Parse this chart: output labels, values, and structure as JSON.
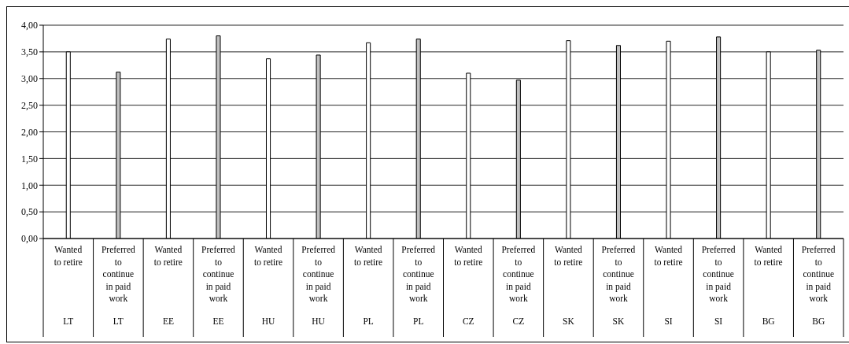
{
  "chart_data": {
    "type": "bar",
    "categories": [
      "Wanted to retire\nLT",
      "Preferred to continue in paid work\nLT",
      "Wanted to retire\nEE",
      "Preferred to continue in paid work\nEE",
      "Wanted to retire\nHU",
      "Preferred to continue in paid work\nHU",
      "Wanted to retire\nPL",
      "Preferred to continue in paid work\nPL",
      "Wanted to retire\nCZ",
      "Preferred to continue in paid work\nCZ",
      "Wanted to retire\nSK",
      "Preferred to continue in paid work\nSK",
      "Wanted to retire\nSI",
      "Preferred to continue in paid work\nSI",
      "Wanted to retire\nBG",
      "Preferred to continue in paid work\nBG"
    ],
    "values": [
      3.5,
      3.12,
      3.74,
      3.8,
      3.37,
      3.44,
      3.67,
      3.74,
      3.1,
      2.97,
      3.71,
      3.62,
      3.7,
      3.78,
      3.5,
      3.53
    ],
    "colors": [
      "#ffffff",
      "#c0c0c0",
      "#ffffff",
      "#c0c0c0",
      "#ffffff",
      "#c0c0c0",
      "#ffffff",
      "#c0c0c0",
      "#ffffff",
      "#c0c0c0",
      "#ffffff",
      "#c0c0c0",
      "#ffffff",
      "#c0c0c0",
      "#ffffff",
      "#c0c0c0"
    ],
    "ylim": [
      0,
      4
    ],
    "yticks": [
      {
        "value": 0,
        "label": "0,00"
      },
      {
        "value": 0.5,
        "label": "0,50"
      },
      {
        "value": 1,
        "label": "1,00"
      },
      {
        "value": 1.5,
        "label": "1,50"
      },
      {
        "value": 2,
        "label": "2,00"
      },
      {
        "value": 2.5,
        "label": "2,50"
      },
      {
        "value": 3,
        "label": "3,00"
      },
      {
        "value": 3.5,
        "label": "3,50"
      },
      {
        "value": 4,
        "label": "4,00"
      }
    ],
    "grid": "y"
  }
}
